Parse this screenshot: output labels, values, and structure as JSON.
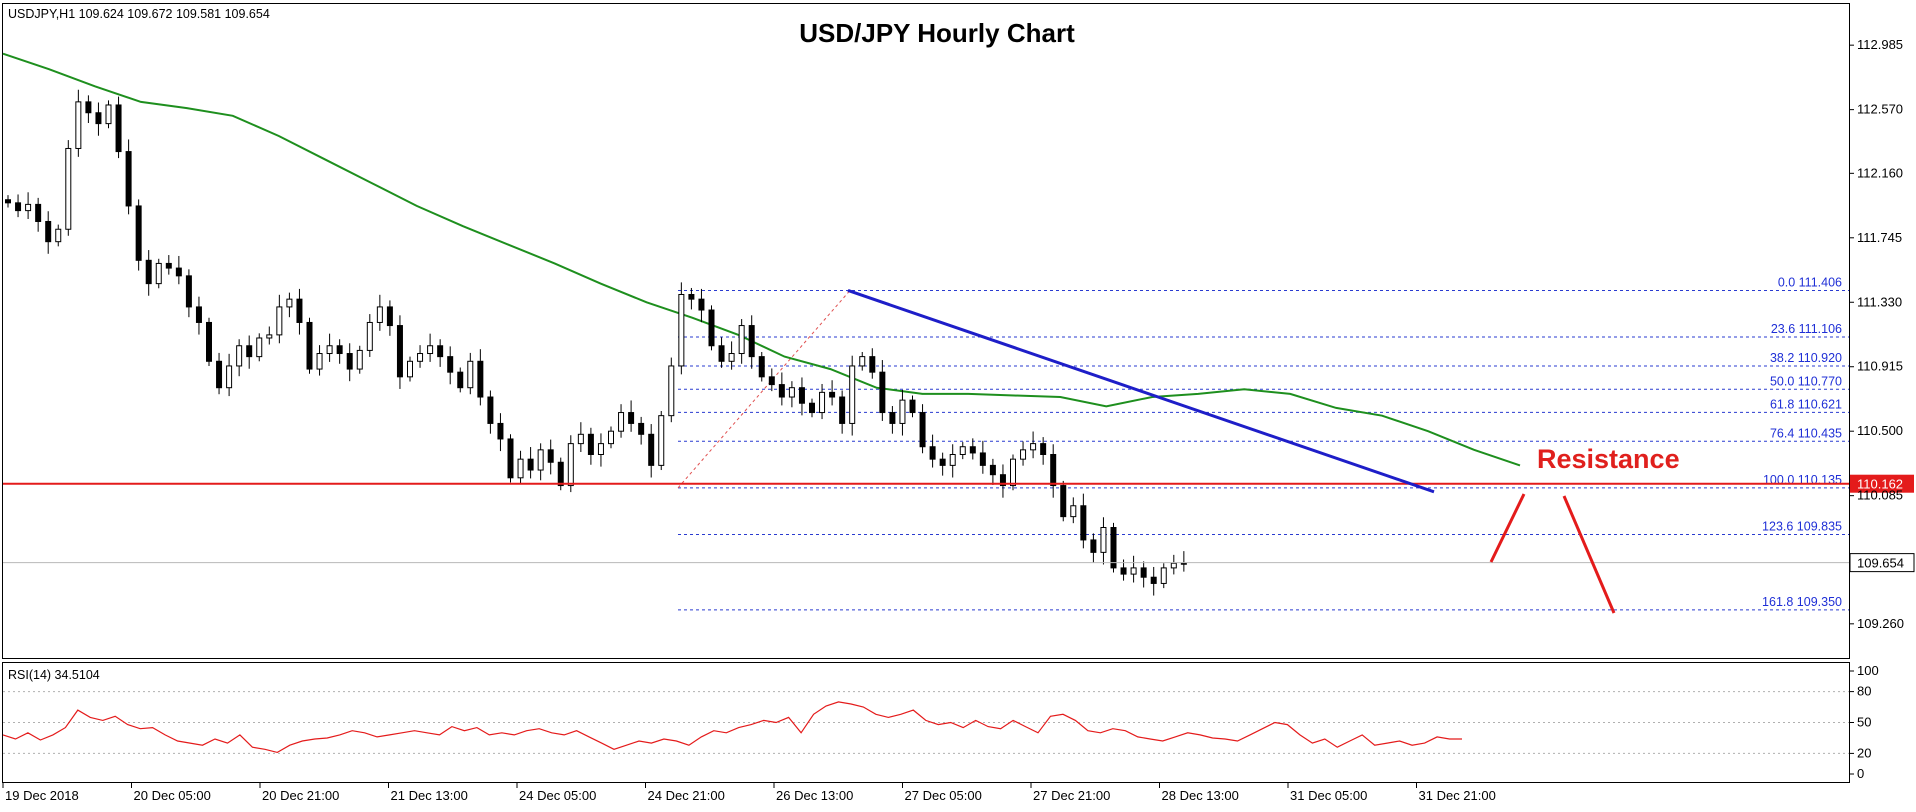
{
  "chart_data": {
    "type": "candlestick",
    "title": "USD/JPY Hourly Chart",
    "symbol_header": "USDJPY,H1  109.624 109.672 109.581 109.654",
    "price_axis": {
      "min": 109.04,
      "max": 113.25,
      "ticks": [
        "112.985",
        "112.570",
        "112.160",
        "111.745",
        "111.330",
        "110.915",
        "110.500",
        "110.085",
        "109.260"
      ]
    },
    "x_axis": {
      "labels": [
        "19 Dec 2018",
        "20 Dec 05:00",
        "20 Dec 21:00",
        "21 Dec 13:00",
        "24 Dec 05:00",
        "24 Dec 21:00",
        "26 Dec 13:00",
        "27 Dec 05:00",
        "27 Dec 21:00",
        "28 Dec 13:00",
        "31 Dec 05:00",
        "31 Dec 21:00"
      ]
    },
    "series": [
      {
        "name": "price",
        "kind": "candles",
        "close_path": [
          111.97,
          111.92,
          111.96,
          111.85,
          111.72,
          111.8,
          112.32,
          112.62,
          112.55,
          112.48,
          112.6,
          112.3,
          111.95,
          111.6,
          111.45,
          111.58,
          111.55,
          111.5,
          111.3,
          111.2,
          110.95,
          110.78,
          110.92,
          111.05,
          110.98,
          111.1,
          111.12,
          111.3,
          111.35,
          111.2,
          110.9,
          111.0,
          111.05,
          111.0,
          110.9,
          111.02,
          111.2,
          111.3,
          111.18,
          110.85,
          110.95,
          111.0,
          111.05,
          110.98,
          110.88,
          110.78,
          110.95,
          110.72,
          110.55,
          110.45,
          110.2,
          110.32,
          110.25,
          110.38,
          110.3,
          110.15,
          110.42,
          110.48,
          110.35,
          110.42,
          110.5,
          110.62,
          110.55,
          110.48,
          110.28,
          110.6,
          110.92,
          111.38,
          111.35,
          111.28,
          111.05,
          110.95,
          111.0,
          111.18,
          110.98,
          110.85,
          110.8,
          110.72,
          110.78,
          110.68,
          110.62,
          110.75,
          110.72,
          110.55,
          110.92,
          110.98,
          110.88,
          110.62,
          110.55,
          110.7,
          110.62,
          110.4,
          110.32,
          110.28,
          110.35,
          110.4,
          110.36,
          110.28,
          110.22,
          110.15,
          110.32,
          110.38,
          110.42,
          110.35,
          110.15,
          109.95,
          110.02,
          109.8,
          109.72,
          109.88,
          109.62,
          109.58,
          109.62,
          109.56,
          109.52,
          109.62,
          109.65,
          109.65
        ]
      },
      {
        "name": "moving average",
        "kind": "line",
        "color": "#1e8f1e",
        "values": [
          112.93,
          112.83,
          112.72,
          112.62,
          112.58,
          112.53,
          112.4,
          112.25,
          112.1,
          111.95,
          111.82,
          111.7,
          111.58,
          111.45,
          111.33,
          111.23,
          111.12,
          110.98,
          110.9,
          110.78,
          110.74,
          110.74,
          110.73,
          110.72,
          110.66,
          110.72,
          110.74,
          110.77,
          110.74,
          110.65,
          110.6,
          110.5,
          110.38,
          110.28
        ]
      }
    ],
    "fibonacci": [
      {
        "level": "0.0",
        "price": "111.406"
      },
      {
        "level": "23.6",
        "price": "111.106"
      },
      {
        "level": "38.2",
        "price": "110.920"
      },
      {
        "level": "50.0",
        "price": "110.770"
      },
      {
        "level": "61.8",
        "price": "110.621"
      },
      {
        "level": "76.4",
        "price": "110.435"
      },
      {
        "level": "100.0",
        "price": "110.135"
      },
      {
        "level": "123.6",
        "price": "109.835"
      },
      {
        "level": "161.8",
        "price": "109.350"
      }
    ],
    "trendline": {
      "from": 111.406,
      "to": 110.11,
      "color": "#1e1ec8"
    },
    "horizontal_line": {
      "price": 110.162,
      "label": "110.162",
      "color": "#e41b1b"
    },
    "current_price": {
      "price": 109.654,
      "label": "109.654"
    },
    "annotation": "Resistance",
    "rsi": {
      "label": "RSI(14) 34.5104",
      "axis_ticks": [
        "100",
        "80",
        "50",
        "20",
        "0"
      ],
      "values": [
        38,
        34,
        40,
        33,
        38,
        45,
        62,
        55,
        52,
        56,
        48,
        44,
        45,
        38,
        32,
        30,
        28,
        34,
        30,
        38,
        26,
        24,
        21,
        28,
        32,
        34,
        35,
        38,
        42,
        40,
        36,
        38,
        40,
        42,
        40,
        38,
        46,
        42,
        45,
        38,
        40,
        38,
        42,
        44,
        40,
        38,
        42,
        36,
        30,
        24,
        28,
        32,
        30,
        34,
        32,
        28,
        36,
        42,
        40,
        45,
        48,
        52,
        50,
        55,
        40,
        58,
        66,
        70,
        68,
        65,
        58,
        55,
        58,
        62,
        52,
        48,
        50,
        45,
        52,
        46,
        44,
        52,
        46,
        40,
        56,
        58,
        52,
        42,
        40,
        44,
        42,
        36,
        34,
        32,
        36,
        40,
        38,
        35,
        34,
        32,
        38,
        44,
        50,
        48,
        38,
        30,
        34,
        26,
        32,
        38,
        28,
        30,
        32,
        28,
        30,
        36,
        34,
        34
      ]
    }
  }
}
